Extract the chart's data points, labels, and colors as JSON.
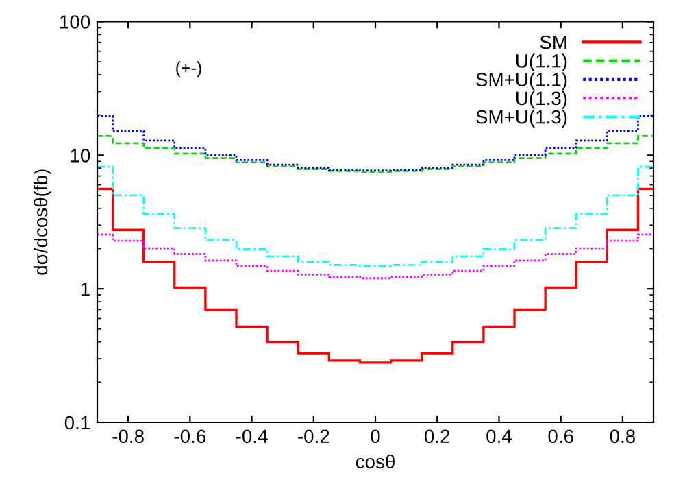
{
  "chart_data": {
    "type": "histogram",
    "xlabel": "cosθ",
    "ylabel": "dσ/dcosθ(fb)",
    "annotations": [
      "(+-)"
    ],
    "bins": [
      -0.9,
      -0.85,
      -0.75,
      -0.65,
      -0.55,
      -0.45,
      -0.35,
      -0.25,
      -0.15,
      -0.05,
      0.05,
      0.15,
      0.25,
      0.35,
      0.45,
      0.55,
      0.65,
      0.75,
      0.85,
      0.9
    ],
    "series": [
      {
        "name": "SM",
        "color": "#ff0000",
        "line_style": "solid",
        "values": [
          5.6,
          2.76,
          1.59,
          1.02,
          0.7,
          0.52,
          0.4,
          0.33,
          0.29,
          0.28,
          0.29,
          0.33,
          0.4,
          0.52,
          0.7,
          1.02,
          1.59,
          2.76,
          5.6
        ]
      },
      {
        "name": "U(1.1)",
        "color": "#00dd00",
        "line_style": "dashed",
        "values": [
          13.9,
          12.3,
          11.3,
          10.3,
          9.5,
          8.85,
          8.25,
          7.87,
          7.62,
          7.5,
          7.62,
          7.87,
          8.25,
          8.85,
          9.5,
          10.3,
          11.3,
          12.3,
          13.9
        ]
      },
      {
        "name": "SM+U(1.1)",
        "color": "#0000ff",
        "line_style": "dotted",
        "values": [
          19.6,
          15.2,
          12.9,
          11.3,
          10.0,
          9.2,
          8.5,
          8.06,
          7.74,
          7.68,
          7.74,
          8.06,
          8.5,
          9.2,
          10.0,
          11.3,
          12.9,
          15.2,
          19.6
        ]
      },
      {
        "name": "U(1.3)",
        "color": "#ff00ff",
        "line_style": "dotted",
        "values": [
          2.55,
          2.29,
          2.01,
          1.82,
          1.63,
          1.48,
          1.36,
          1.28,
          1.23,
          1.2,
          1.23,
          1.28,
          1.36,
          1.48,
          1.63,
          1.82,
          2.01,
          2.29,
          2.55
        ]
      },
      {
        "name": "SM+U(1.3)",
        "color": "#00ffff",
        "line_style": "dashdot",
        "values": [
          8.2,
          5.0,
          3.64,
          2.85,
          2.32,
          1.98,
          1.75,
          1.59,
          1.51,
          1.48,
          1.51,
          1.59,
          1.75,
          1.98,
          2.32,
          2.85,
          3.64,
          5.0,
          8.2
        ]
      }
    ],
    "log": "y",
    "xlim": [
      -0.9,
      0.9
    ],
    "ylim": [
      0.1,
      100
    ],
    "xticks": [
      -0.8,
      -0.6,
      -0.4,
      -0.2,
      0,
      0.2,
      0.4,
      0.6,
      0.8
    ],
    "yticks": [
      0.1,
      1,
      10,
      100
    ],
    "legend": "top right",
    "grid": false
  }
}
